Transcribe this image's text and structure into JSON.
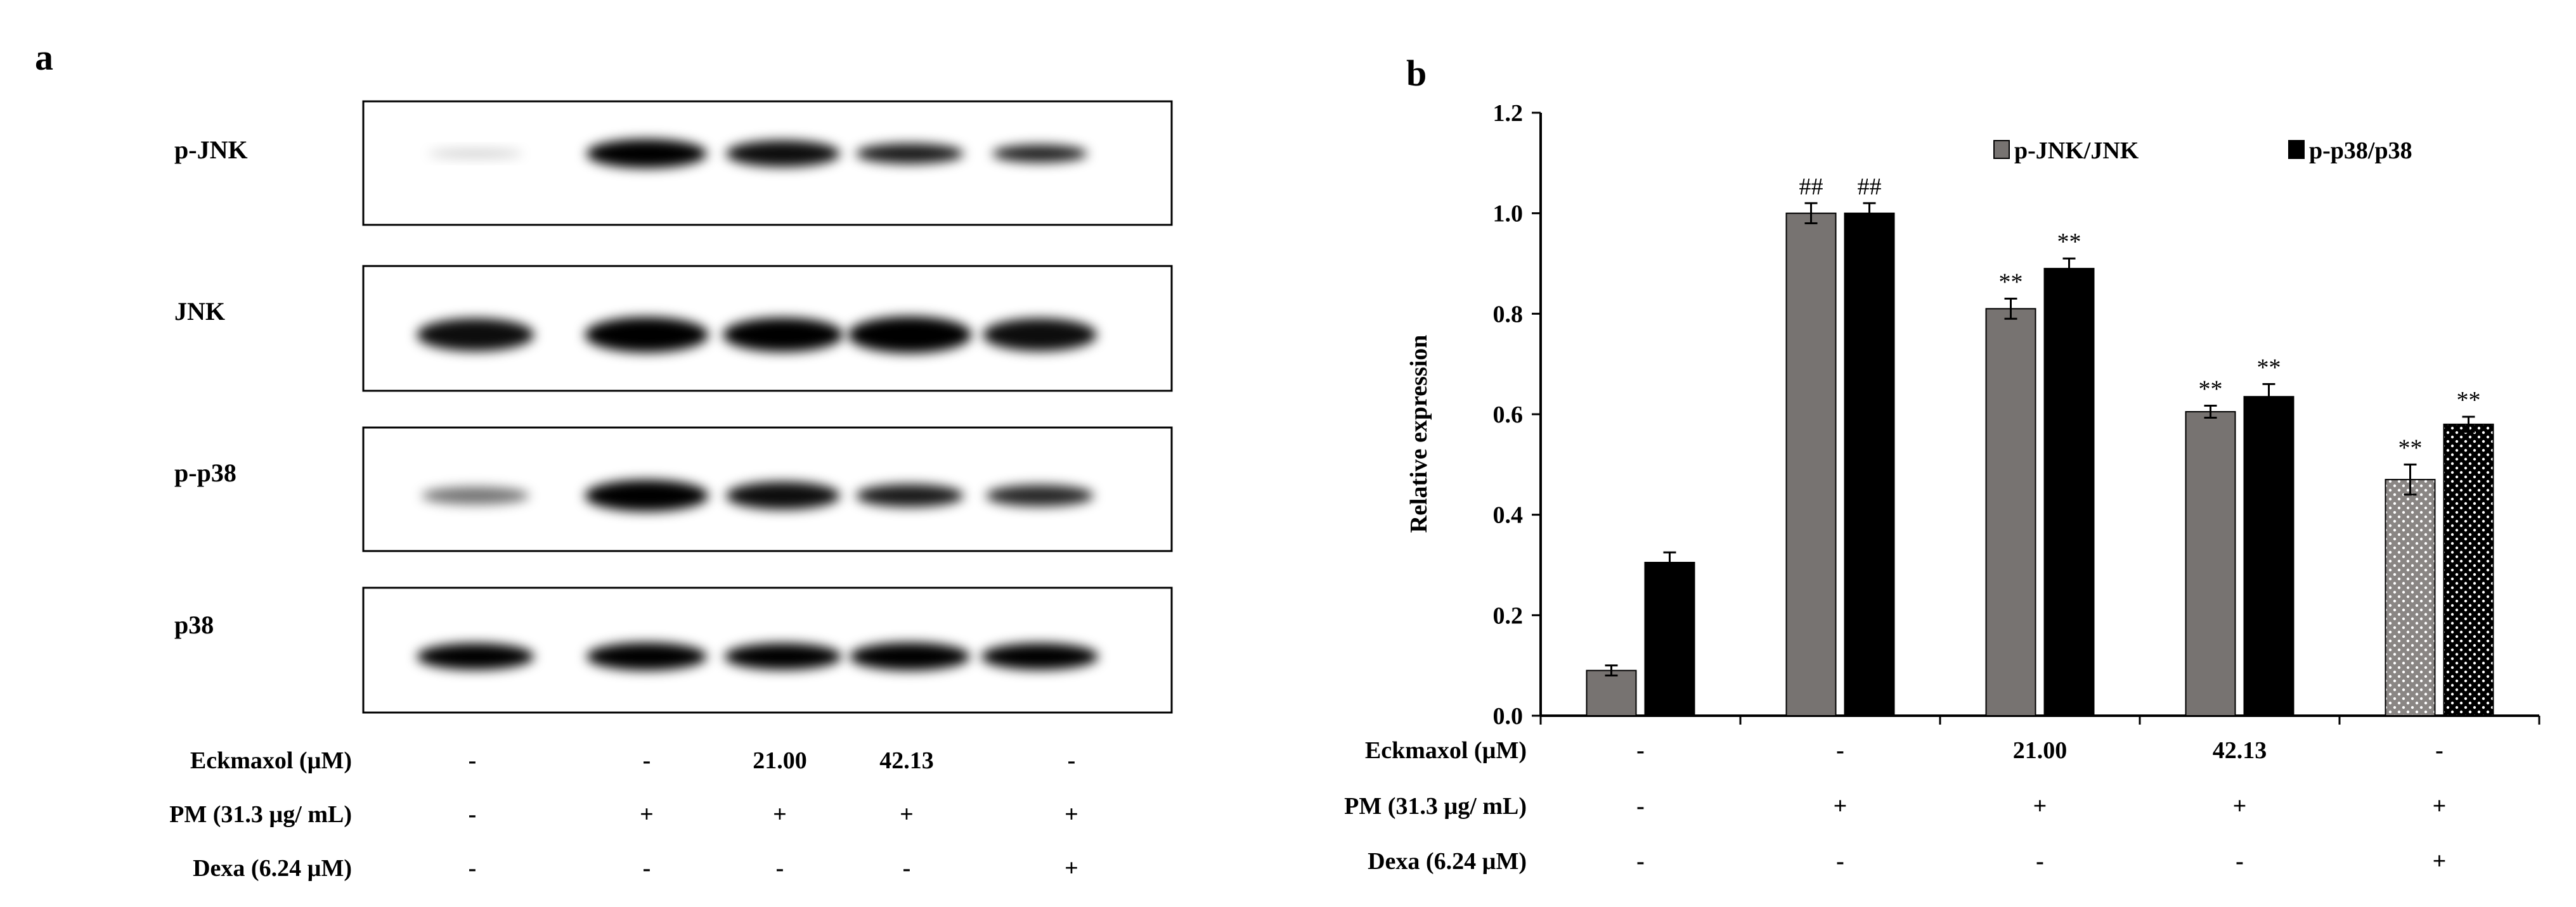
{
  "panel_a": {
    "label": "a",
    "blot_labels": [
      "p-JNK",
      "JNK",
      "p-p38",
      "p38"
    ]
  },
  "panel_b": {
    "label": "b"
  },
  "conditions": {
    "rows": [
      {
        "label": "Eckmaxol (µM)",
        "values": [
          "-",
          "-",
          "21.00",
          "42.13",
          "-"
        ]
      },
      {
        "label": "PM (31.3 µg/ mL)",
        "values": [
          "-",
          "+",
          "+",
          "+",
          "+"
        ]
      },
      {
        "label": "Dexa (6.24 µM)",
        "values": [
          "-",
          "-",
          "-",
          "-",
          "+"
        ]
      }
    ]
  },
  "chart_data": {
    "type": "bar",
    "ylabel": "Relative expression",
    "ylim": [
      0,
      1.2
    ],
    "yticks": [
      "0.0",
      "0.2",
      "0.4",
      "0.6",
      "0.8",
      "1.0",
      "1.2"
    ],
    "legend_position": "top-right",
    "series": [
      {
        "name": "p-JNK/JNK",
        "color": "#777371",
        "values": [
          0.09,
          1.0,
          0.81,
          0.605,
          0.47
        ],
        "errors": [
          0.01,
          0.02,
          0.02,
          0.012,
          0.03
        ],
        "annotations": [
          "",
          "##",
          "**",
          "**",
          "**"
        ]
      },
      {
        "name": "p-p38/p38",
        "color": "#000000",
        "values": [
          0.305,
          1.0,
          0.89,
          0.635,
          0.58
        ],
        "errors": [
          0.02,
          0.02,
          0.02,
          0.025,
          0.015
        ],
        "annotations": [
          "",
          "##",
          "**",
          "**",
          "**"
        ]
      }
    ],
    "last_group_pattern": "dotted"
  }
}
